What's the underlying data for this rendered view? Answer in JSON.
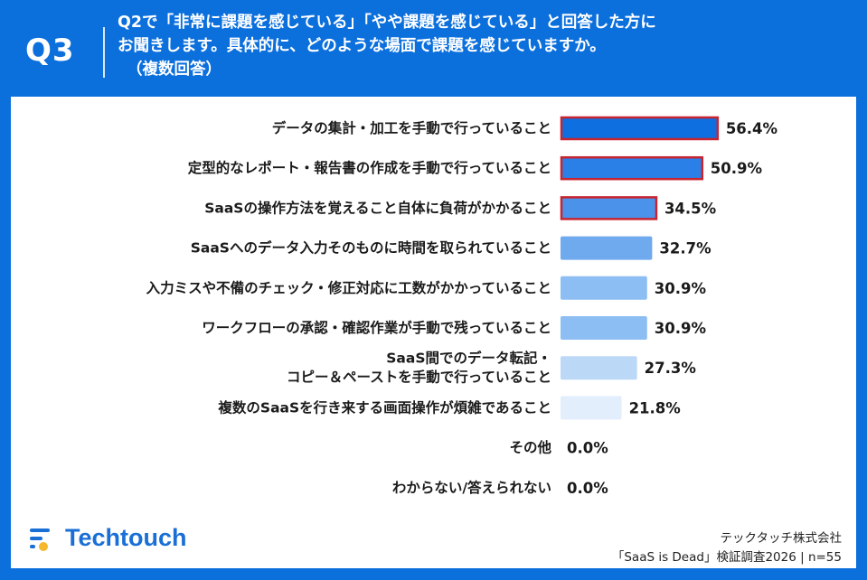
{
  "header": {
    "question_number": "Q3",
    "question_line1": "Q2で「非常に課題を感じている」「やや課題を感じている」と回答した方に",
    "question_line2": "お聞きします。具体的に、どのような場面で課題を感じていますか。",
    "question_note": "（複数回答）"
  },
  "chart_data": {
    "type": "bar",
    "orientation": "horizontal",
    "categories": [
      [
        "データの集計・加工を手動で行っていること"
      ],
      [
        "定型的なレポート・報告書の作成を手動で行っていること"
      ],
      [
        "SaaSの操作方法を覚えること自体に負荷がかかること"
      ],
      [
        "SaaSへのデータ入力そのものに時間を取られていること"
      ],
      [
        "入力ミスや不備のチェック・修正対応に工数がかかっていること"
      ],
      [
        "ワークフローの承認・確認作業が手動で残っていること"
      ],
      [
        "SaaS間でのデータ転記・",
        "コピー＆ペーストを手動で行っていること"
      ],
      [
        "複数のSaaSを行き来する画面操作が煩雑であること"
      ],
      [
        "その他"
      ],
      [
        "わからない/答えられない"
      ]
    ],
    "values": [
      56.4,
      50.9,
      34.5,
      32.7,
      30.9,
      30.9,
      27.3,
      21.8,
      0.0,
      0.0
    ],
    "value_labels": [
      "56.4%",
      "50.9%",
      "34.5%",
      "32.7%",
      "30.9%",
      "30.9%",
      "27.3%",
      "21.8%",
      "0.0%",
      "0.0%"
    ],
    "unit": "%",
    "highlighted": [
      true,
      true,
      true,
      false,
      false,
      false,
      false,
      false,
      false,
      false
    ],
    "bar_colors": [
      "#0d6fe0",
      "#2a80e6",
      "#4a92ea",
      "#6fa9ee",
      "#8cbdf3",
      "#8cbdf3",
      "#bcd8f7",
      "#e2eefc",
      "#e2eefc",
      "#e2eefc"
    ],
    "highlight_color": "#c8242f",
    "grid": false
  },
  "footer": {
    "logo_text": "Techtouch",
    "company": "テックタッチ株式会社",
    "survey": "「SaaS is Dead」検証調査2026 | n=55"
  }
}
